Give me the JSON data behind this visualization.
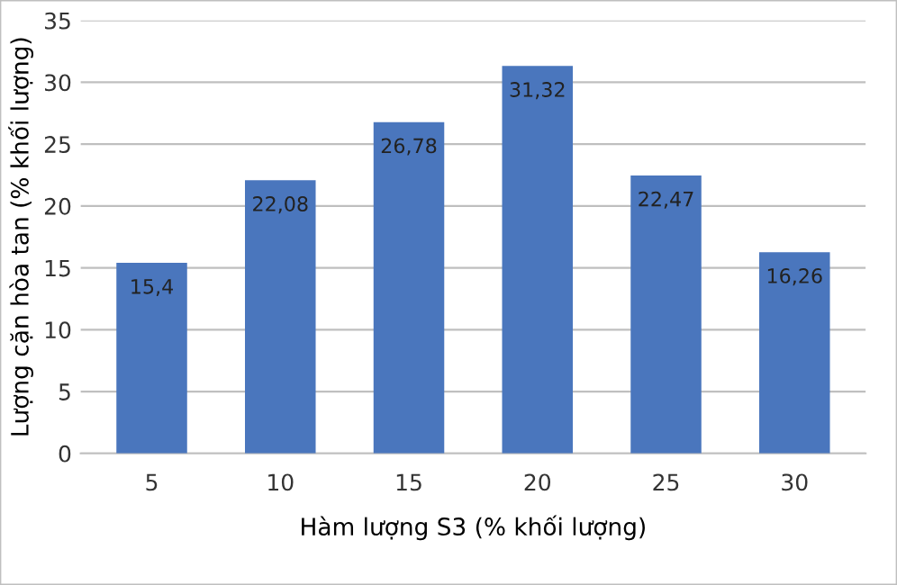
{
  "chart_data": {
    "type": "bar",
    "xlabel": "Hàm lượng S3 (% khối lượng)",
    "ylabel": "Lượng cặn hòa tan (% khối lượng)",
    "categories": [
      "5",
      "10",
      "15",
      "20",
      "25",
      "30"
    ],
    "values": [
      15.4,
      22.08,
      26.78,
      31.32,
      22.47,
      16.26
    ],
    "value_labels": [
      "15,4",
      "22,08",
      "26,78",
      "31,32",
      "22,47",
      "16,26"
    ],
    "color": "#4a76bd",
    "ylim": [
      0,
      35
    ],
    "yticks": [
      0,
      5,
      10,
      15,
      20,
      25,
      30,
      35
    ],
    "grid": "y",
    "legend": false
  }
}
